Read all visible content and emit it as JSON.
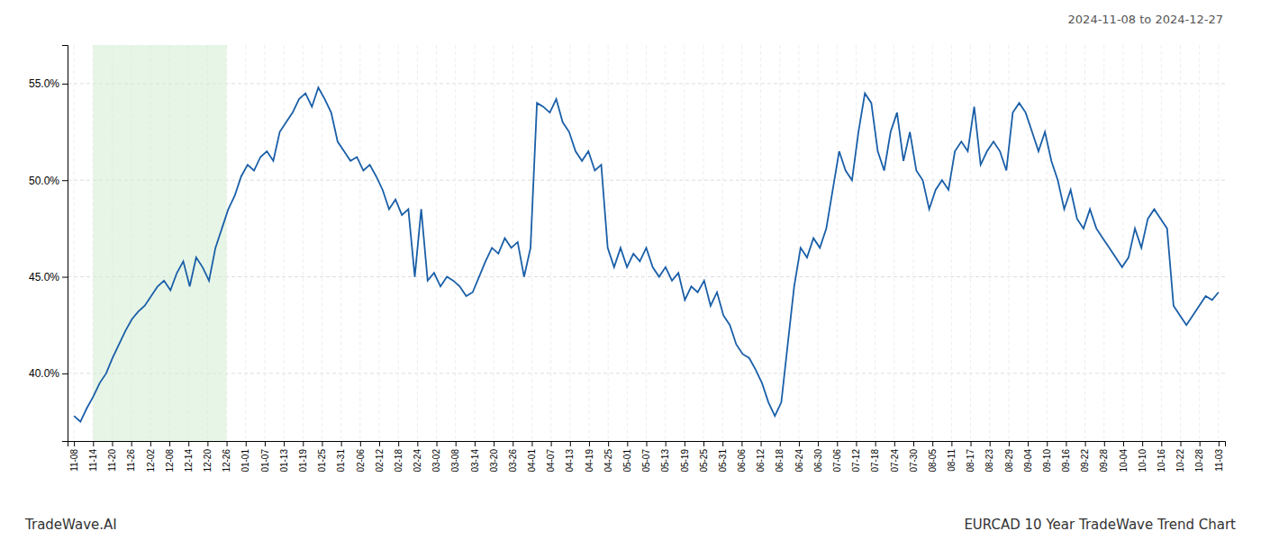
{
  "chart_data": {
    "type": "line",
    "title": "2024-11-08 to 2024-12-27",
    "annotations": [
      "TradeWave.AI",
      "EURCAD 10 Year TradeWave Trend Chart"
    ],
    "color": "#1a5fa8",
    "grid": true,
    "ylim": [
      36.5,
      57.0
    ],
    "yticks": [
      {
        "value": 40,
        "label": "40.0%"
      },
      {
        "value": 45,
        "label": "45.0%"
      },
      {
        "value": 50,
        "label": "50.0%"
      },
      {
        "value": 55,
        "label": "55.0%"
      }
    ],
    "xlim": [
      -1,
      179
    ],
    "xticks": [
      {
        "value": 0,
        "label": "11-08"
      },
      {
        "value": 2.9667,
        "label": "11-14"
      },
      {
        "value": 5.9333,
        "label": "11-20"
      },
      {
        "value": 8.9,
        "label": "11-26"
      },
      {
        "value": 11.8667,
        "label": "12-02"
      },
      {
        "value": 14.8333,
        "label": "12-08"
      },
      {
        "value": 17.8,
        "label": "12-14"
      },
      {
        "value": 20.7667,
        "label": "12-20"
      },
      {
        "value": 23.7333,
        "label": "12-26"
      },
      {
        "value": 26.7,
        "label": "01-01"
      },
      {
        "value": 29.6667,
        "label": "01-07"
      },
      {
        "value": 32.6333,
        "label": "01-13"
      },
      {
        "value": 35.6,
        "label": "01-19"
      },
      {
        "value": 38.5667,
        "label": "01-25"
      },
      {
        "value": 41.5333,
        "label": "01-31"
      },
      {
        "value": 44.5,
        "label": "02-06"
      },
      {
        "value": 47.4667,
        "label": "02-12"
      },
      {
        "value": 50.4333,
        "label": "02-18"
      },
      {
        "value": 53.4,
        "label": "02-24"
      },
      {
        "value": 56.3667,
        "label": "03-02"
      },
      {
        "value": 59.3333,
        "label": "03-08"
      },
      {
        "value": 62.3,
        "label": "03-14"
      },
      {
        "value": 65.2667,
        "label": "03-20"
      },
      {
        "value": 68.2333,
        "label": "03-26"
      },
      {
        "value": 71.2,
        "label": "04-01"
      },
      {
        "value": 74.1667,
        "label": "04-07"
      },
      {
        "value": 77.1333,
        "label": "04-13"
      },
      {
        "value": 80.1,
        "label": "04-19"
      },
      {
        "value": 83.0667,
        "label": "04-25"
      },
      {
        "value": 86.0333,
        "label": "05-01"
      },
      {
        "value": 89,
        "label": "05-07"
      },
      {
        "value": 91.9667,
        "label": "05-13"
      },
      {
        "value": 94.9333,
        "label": "05-19"
      },
      {
        "value": 97.9,
        "label": "05-25"
      },
      {
        "value": 100.8667,
        "label": "05-31"
      },
      {
        "value": 103.8333,
        "label": "06-06"
      },
      {
        "value": 106.8,
        "label": "06-12"
      },
      {
        "value": 109.7667,
        "label": "06-18"
      },
      {
        "value": 112.7333,
        "label": "06-24"
      },
      {
        "value": 115.7,
        "label": "06-30"
      },
      {
        "value": 118.6667,
        "label": "07-06"
      },
      {
        "value": 121.6333,
        "label": "07-12"
      },
      {
        "value": 124.6,
        "label": "07-18"
      },
      {
        "value": 127.5667,
        "label": "07-24"
      },
      {
        "value": 130.5333,
        "label": "07-30"
      },
      {
        "value": 133.5,
        "label": "08-05"
      },
      {
        "value": 136.4667,
        "label": "08-11"
      },
      {
        "value": 139.4333,
        "label": "08-17"
      },
      {
        "value": 142.4,
        "label": "08-23"
      },
      {
        "value": 145.3667,
        "label": "08-29"
      },
      {
        "value": 148.3333,
        "label": "09-04"
      },
      {
        "value": 151.3,
        "label": "09-10"
      },
      {
        "value": 154.2667,
        "label": "09-16"
      },
      {
        "value": 157.2333,
        "label": "09-22"
      },
      {
        "value": 160.2,
        "label": "09-28"
      },
      {
        "value": 163.1667,
        "label": "10-04"
      },
      {
        "value": 166.1333,
        "label": "10-10"
      },
      {
        "value": 169.1,
        "label": "10-16"
      },
      {
        "value": 172.0667,
        "label": "10-22"
      },
      {
        "value": 175.0333,
        "label": "10-28"
      },
      {
        "value": 178,
        "label": "11-03"
      }
    ],
    "shade": [
      2.9667,
      23.7333
    ],
    "shade_color": "#d4ecd4",
    "values": [
      37.8,
      37.5,
      38.2,
      38.8,
      39.5,
      40.0,
      40.8,
      41.5,
      42.2,
      42.8,
      43.2,
      43.5,
      44.0,
      44.5,
      44.8,
      44.3,
      45.2,
      45.8,
      44.5,
      46.0,
      45.5,
      44.8,
      46.5,
      47.5,
      48.5,
      49.2,
      50.2,
      50.8,
      50.5,
      51.2,
      51.5,
      51.0,
      52.5,
      53.0,
      53.5,
      54.2,
      54.5,
      53.8,
      54.8,
      54.2,
      53.5,
      52.0,
      51.5,
      51.0,
      51.2,
      50.5,
      50.8,
      50.2,
      49.5,
      48.5,
      49.0,
      48.2,
      48.5,
      45.0,
      48.5,
      44.8,
      45.2,
      44.5,
      45.0,
      44.8,
      44.5,
      44.0,
      44.2,
      45.0,
      45.8,
      46.5,
      46.2,
      47.0,
      46.5,
      46.8,
      45.0,
      46.5,
      54.0,
      53.8,
      53.5,
      54.2,
      53.0,
      52.5,
      51.5,
      51.0,
      51.5,
      50.5,
      50.8,
      46.5,
      45.5,
      46.5,
      45.5,
      46.2,
      45.8,
      46.5,
      45.5,
      45.0,
      45.5,
      44.8,
      45.2,
      43.8,
      44.5,
      44.2,
      44.8,
      43.5,
      44.2,
      43.0,
      42.5,
      41.5,
      41.0,
      40.8,
      40.2,
      39.5,
      38.5,
      37.8,
      38.5,
      41.5,
      44.5,
      46.5,
      46.0,
      47.0,
      46.5,
      47.5,
      49.5,
      51.5,
      50.5,
      50.0,
      52.5,
      54.5,
      54.0,
      51.5,
      50.5,
      52.5,
      53.5,
      51.0,
      52.5,
      50.5,
      50.0,
      48.5,
      49.5,
      50.0,
      49.5,
      51.5,
      52.0,
      51.5,
      53.8,
      50.8,
      51.5,
      52.0,
      51.5,
      50.5,
      53.5,
      54.0,
      53.5,
      52.5,
      51.5,
      52.5,
      51.0,
      50.0,
      48.5,
      49.5,
      48.0,
      47.5,
      48.5,
      47.5,
      47.0,
      46.5,
      46.0,
      45.5,
      46.0,
      47.5,
      46.5,
      48.0,
      48.5,
      48.0,
      47.5,
      43.5,
      43.0,
      42.5,
      43.0,
      43.5,
      44.0,
      43.8,
      44.2
    ]
  }
}
